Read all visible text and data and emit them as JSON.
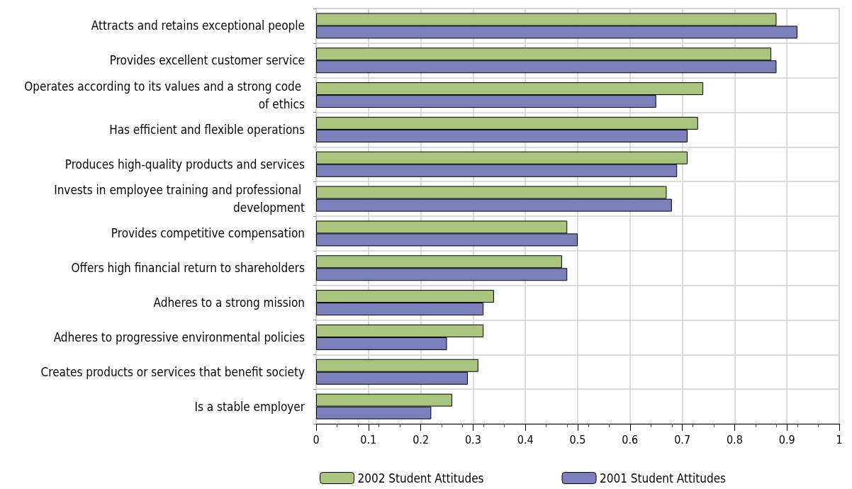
{
  "chart_data": {
    "type": "bar",
    "orientation": "horizontal",
    "categories": [
      "Attracts and retains exceptional people",
      "Provides excellent customer service",
      "Operates according to its values and a strong code of ethics",
      "Has efficient and flexible operations",
      "Produces high-quality products and services",
      "Invests in employee training and professional development",
      "Provides competitive compensation",
      "Offers high financial return to shareholders",
      "Adheres to a strong mission",
      "Adheres to progressive environmental policies",
      "Creates products or services that benefit society",
      "Is a stable employer"
    ],
    "series": [
      {
        "name": "2002 Student Attitudes",
        "color": "#a9c47f",
        "values": [
          0.88,
          0.87,
          0.74,
          0.73,
          0.71,
          0.67,
          0.48,
          0.47,
          0.34,
          0.32,
          0.31,
          0.26
        ]
      },
      {
        "name": "2001 Student Attitudes",
        "color": "#7b80ba",
        "values": [
          0.92,
          0.88,
          0.65,
          0.71,
          0.69,
          0.68,
          0.5,
          0.48,
          0.32,
          0.25,
          0.29,
          0.22
        ]
      }
    ],
    "xlim": [
      0,
      1
    ],
    "xticks": [
      0,
      0.1,
      0.2,
      0.3,
      0.4,
      0.5,
      0.6,
      0.7,
      0.8,
      0.9,
      1
    ],
    "grid": true,
    "legend": "bottom"
  }
}
